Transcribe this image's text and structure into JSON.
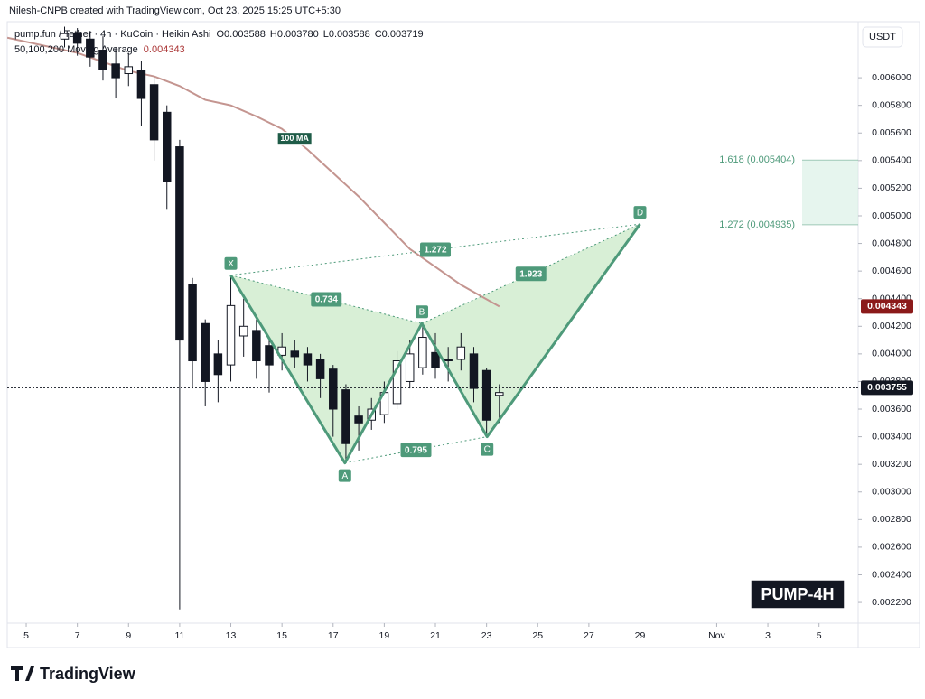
{
  "header": {
    "credit": "Nilesh-CNPB created with TradingView.com, Oct 23, 2025 15:25 UTC+5:30",
    "symbol": "pump.fun / Tether · 4h · KuCoin · Heikin Ashi",
    "ohlc": [
      "O0.003588",
      "H0.003780",
      "L0.003588",
      "C0.003719"
    ],
    "indicator": "50,100,200 Moving Average",
    "currency": "USDT",
    "badge": "PUMP-4H",
    "logo": "TradingView"
  },
  "chart_data": {
    "type": "candlestick",
    "x": [
      6.5,
      7,
      7.5,
      8,
      8.5,
      9,
      9.5,
      10,
      10.5,
      11,
      11.5,
      12,
      12.5,
      13,
      13.5,
      14,
      14.5,
      15,
      15.5,
      16,
      16.5,
      17,
      17.5,
      18,
      18.5,
      19,
      19.5,
      20,
      20.5,
      21,
      21.5,
      22,
      22.5,
      23,
      23.5
    ],
    "open": [
      0.00628,
      0.00632,
      0.00628,
      0.0062,
      0.0061,
      0.00603,
      0.00605,
      0.00595,
      0.00575,
      0.0055,
      0.0045,
      0.00422,
      0.004,
      0.00392,
      0.00413,
      0.00417,
      0.00406,
      0.00399,
      0.00402,
      0.004,
      0.00396,
      0.00389,
      0.00374,
      0.00355,
      0.00352,
      0.00356,
      0.00364,
      0.0038,
      0.0039,
      0.00401,
      0.00396,
      0.00396,
      0.004,
      0.00388,
      0.0037
    ],
    "high": [
      0.00637,
      0.00636,
      0.00634,
      0.0063,
      0.00622,
      0.00618,
      0.00612,
      0.006,
      0.0058,
      0.00555,
      0.00455,
      0.00425,
      0.0041,
      0.00457,
      0.0044,
      0.00425,
      0.00412,
      0.00415,
      0.0041,
      0.00405,
      0.004,
      0.00392,
      0.00378,
      0.00362,
      0.00368,
      0.0038,
      0.00402,
      0.0041,
      0.00422,
      0.00415,
      0.00405,
      0.00415,
      0.00405,
      0.0039,
      0.00378
    ],
    "low": [
      0.00622,
      0.00616,
      0.00608,
      0.00598,
      0.00585,
      0.00594,
      0.00565,
      0.0054,
      0.00505,
      0.00215,
      0.00375,
      0.00362,
      0.00365,
      0.0038,
      0.00398,
      0.00382,
      0.00372,
      0.00388,
      0.0039,
      0.0038,
      0.00368,
      0.0034,
      0.00321,
      0.0033,
      0.00345,
      0.0035,
      0.0036,
      0.00375,
      0.00385,
      0.00382,
      0.0038,
      0.00388,
      0.00365,
      0.0034,
      0.0035
    ],
    "close": [
      0.00632,
      0.00625,
      0.00615,
      0.00606,
      0.006,
      0.00608,
      0.00585,
      0.00555,
      0.00525,
      0.0041,
      0.00395,
      0.0038,
      0.00385,
      0.00435,
      0.0042,
      0.00395,
      0.00392,
      0.00405,
      0.00398,
      0.00392,
      0.00382,
      0.0036,
      0.00335,
      0.0035,
      0.0036,
      0.00372,
      0.00395,
      0.004,
      0.00412,
      0.0039,
      0.00395,
      0.00405,
      0.00375,
      0.00352,
      0.00372
    ],
    "up_color": "#ffffff",
    "down_color": "#131722",
    "ma": {
      "name": "100 MA",
      "color": "#c49590",
      "x": [
        4.26,
        7,
        9,
        10,
        11,
        12,
        13,
        14,
        15,
        16,
        17,
        18,
        19,
        20,
        21,
        22,
        23.5
      ],
      "values": [
        0.00629,
        0.00618,
        0.00605,
        0.00601,
        0.00594,
        0.00584,
        0.0058,
        0.00572,
        0.00563,
        0.00548,
        0.00531,
        0.00514,
        0.00495,
        0.00476,
        0.00463,
        0.0045,
        0.004343
      ]
    },
    "last_price": 0.003755,
    "pattern": {
      "labels": [
        "X",
        "A",
        "B",
        "C",
        "D"
      ],
      "x": [
        13,
        17.46,
        20.47,
        23.02,
        29
      ],
      "values": [
        0.00457,
        0.00321,
        0.00422,
        0.0034,
        0.00494
      ],
      "color": "#4e9a7a",
      "fill": "#8fd18a"
    },
    "ratios": [
      0.734,
      1.272,
      0.795,
      1.923
    ],
    "targets": [
      {
        "label": "1.618 (0.005404)",
        "value": 0.005404
      },
      {
        "label": "1.272 (0.004935)",
        "value": 0.004935
      }
    ],
    "xlim": [
      4.257,
      37.53
    ],
    "ylim": [
      0.00205,
      0.00638
    ],
    "xticks": [
      5,
      7,
      9,
      11,
      13,
      15,
      17,
      19,
      21,
      23,
      25,
      27,
      29,
      {
        "value": 32,
        "label": "Nov"
      },
      {
        "value": 34,
        "label": "3"
      },
      {
        "value": 36,
        "label": "5"
      }
    ],
    "yticks": [
      {
        "value": 0.0022,
        "label": "0.002200"
      },
      {
        "value": 0.0024,
        "label": "0.002400"
      },
      {
        "value": 0.0026,
        "label": "0.002600"
      },
      {
        "value": 0.0028,
        "label": "0.002800"
      },
      {
        "value": 0.003,
        "label": "0.003000"
      },
      {
        "value": 0.0032,
        "label": "0.003200"
      },
      {
        "value": 0.0034,
        "label": "0.003400"
      },
      {
        "value": 0.0036,
        "label": "0.003600"
      },
      {
        "value": 0.0038,
        "label": "0.003800"
      },
      {
        "value": 0.004,
        "label": "0.004000"
      },
      {
        "value": 0.0042,
        "label": "0.004200"
      },
      {
        "value": 0.0044,
        "label": "0.004400"
      },
      {
        "value": 0.0046,
        "label": "0.004600"
      },
      {
        "value": 0.0048,
        "label": "0.004800"
      },
      {
        "value": 0.005,
        "label": "0.005000"
      },
      {
        "value": 0.0052,
        "label": "0.005200"
      },
      {
        "value": 0.0054,
        "label": "0.005400"
      },
      {
        "value": 0.0056,
        "label": "0.005600"
      },
      {
        "value": 0.0058,
        "label": "0.005800"
      },
      {
        "value": 0.006,
        "label": "0.006000"
      }
    ]
  }
}
